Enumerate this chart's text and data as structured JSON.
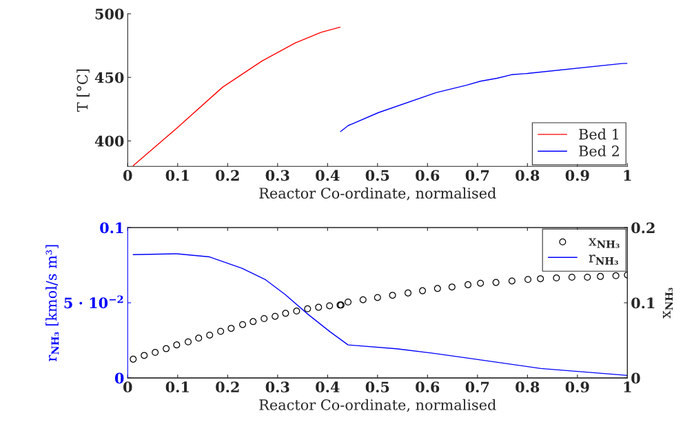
{
  "chart_data": [
    {
      "type": "line",
      "xlabel": "Reactor Co-ordinate, normalised",
      "ylabel": "T [°C]",
      "xlim": [
        0,
        1
      ],
      "xticks": [
        0,
        0.1,
        0.2,
        0.3,
        0.4,
        0.5,
        0.6,
        0.7,
        0.8,
        0.9,
        1
      ],
      "ylim": [
        380,
        500
      ],
      "yticks": [
        400,
        450,
        500
      ],
      "grid": false,
      "legend": "bottom right",
      "series": [
        {
          "name": "Bed 1",
          "color": "#ff0000",
          "x": [
            0.011,
            0.098,
            0.19,
            0.269,
            0.335,
            0.387,
            0.425
          ],
          "values": [
            380.5,
            410,
            442.3,
            462.9,
            477,
            485.4,
            489.5
          ]
        },
        {
          "name": "Bed 2",
          "color": "#0000ff",
          "x": [
            0.426,
            0.441,
            0.502,
            0.617,
            0.679,
            0.706,
            0.739,
            0.768,
            0.8,
            0.989,
            1.0
          ],
          "values": [
            407.4,
            412,
            422.3,
            438,
            443.9,
            447,
            449.3,
            452.1,
            453.1,
            460.9,
            461
          ]
        }
      ]
    },
    {
      "type": "line",
      "xlabel": "Reactor Co-ordinate, normalised",
      "ylabel": "r$_{NH₃}$ [kmol/s m³]",
      "y2label": "x$_{NH₃}$",
      "xlim": [
        0,
        1
      ],
      "xticks": [
        0,
        0.1,
        0.2,
        0.3,
        0.4,
        0.5,
        0.6,
        0.7,
        0.8,
        0.9,
        1
      ],
      "ylim": [
        0,
        0.1
      ],
      "yticks": [
        0,
        {
          "value": 0.05,
          "label": "5 · 10$^{−2}$"
        },
        0.1
      ],
      "y2lim": [
        0,
        0.2
      ],
      "y2ticks": [
        0,
        0.1,
        0.2
      ],
      "grid": false,
      "legend": "top right",
      "series": [
        {
          "name": "x$_{NH₃}$",
          "type": "scatter",
          "marker": "circle",
          "axis": "y2",
          "color": "#000000",
          "x": [
            0.011,
            0.033,
            0.055,
            0.077,
            0.098,
            0.121,
            0.142,
            0.164,
            0.186,
            0.207,
            0.23,
            0.251,
            0.273,
            0.295,
            0.316,
            0.338,
            0.36,
            0.382,
            0.404,
            0.425,
            0.427,
            0.441,
            0.471,
            0.5,
            0.53,
            0.561,
            0.59,
            0.62,
            0.649,
            0.681,
            0.706,
            0.737,
            0.769,
            0.801,
            0.826,
            0.858,
            0.889,
            0.92,
            0.946,
            0.977,
            1.0
          ],
          "values": [
            0.025,
            0.03,
            0.034,
            0.039,
            0.044,
            0.048,
            0.053,
            0.057,
            0.062,
            0.066,
            0.071,
            0.075,
            0.079,
            0.082,
            0.086,
            0.089,
            0.092,
            0.094,
            0.096,
            0.097,
            0.097,
            0.101,
            0.104,
            0.107,
            0.11,
            0.113,
            0.116,
            0.119,
            0.121,
            0.124,
            0.126,
            0.127,
            0.129,
            0.131,
            0.132,
            0.133,
            0.134,
            0.134,
            0.135,
            0.136,
            0.137
          ]
        },
        {
          "name": "r$_{NH₃}$",
          "type": "line",
          "axis": "y",
          "color": "#0000ff",
          "x": [
            0.011,
            0.098,
            0.164,
            0.229,
            0.276,
            0.315,
            0.361,
            0.405,
            0.441,
            0.538,
            0.61,
            0.679,
            0.827,
            1.0
          ],
          "values": [
            0.082,
            0.0826,
            0.0805,
            0.0729,
            0.0653,
            0.0555,
            0.0423,
            0.0307,
            0.022,
            0.0194,
            0.0165,
            0.0133,
            0.0063,
            0.0017
          ]
        }
      ]
    }
  ]
}
